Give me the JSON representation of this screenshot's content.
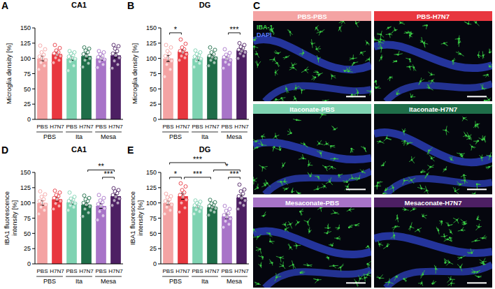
{
  "chart_data": [
    {
      "type": "bar",
      "panel": "A",
      "title": "CA1",
      "y_label": "Microglia density [%]",
      "categories": [
        "PBS",
        "H7N7",
        "PBS",
        "H7N7",
        "PBS",
        "H7N7"
      ],
      "groups": [
        "PBS",
        "Ita",
        "Mesa"
      ],
      "values": [
        100,
        107,
        100,
        104,
        100,
        105
      ],
      "errors": [
        4,
        3,
        3,
        4,
        3,
        4
      ],
      "points": [
        [
          82,
          88,
          93,
          97,
          100,
          103,
          106,
          110,
          115,
          121
        ],
        [
          93,
          97,
          101,
          104,
          106,
          108,
          110,
          113,
          117,
          122
        ],
        [
          80,
          88,
          95,
          99,
          101,
          103,
          105,
          108,
          110,
          112
        ],
        [
          86,
          92,
          97,
          100,
          104,
          107,
          110,
          113,
          116,
          118
        ],
        [
          85,
          90,
          95,
          98,
          100,
          102,
          104,
          107,
          110,
          112
        ],
        [
          84,
          90,
          96,
          101,
          105,
          108,
          112,
          116,
          120,
          122
        ]
      ],
      "colors": [
        "#f4a3a3",
        "#e8373f",
        "#7fd3b2",
        "#1f6e49",
        "#a874c8",
        "#4d1f63"
      ],
      "ylim": [
        0,
        150
      ],
      "yticks": [
        0,
        25,
        50,
        75,
        100,
        125,
        150
      ],
      "brackets": []
    },
    {
      "type": "bar",
      "panel": "B",
      "title": "DG",
      "y_label": "Microglia density [%]",
      "categories": [
        "PBS",
        "H7N7",
        "PBS",
        "H7N7",
        "PBS",
        "H7N7"
      ],
      "groups": [
        "PBS",
        "Ita",
        "Mesa"
      ],
      "values": [
        100,
        111,
        100,
        103,
        100,
        113
      ],
      "errors": [
        5,
        3,
        3,
        3,
        3,
        3
      ],
      "points": [
        [
          70,
          82,
          90,
          96,
          100,
          104,
          108,
          112,
          118,
          122
        ],
        [
          97,
          101,
          104,
          107,
          110,
          112,
          115,
          118,
          124,
          131
        ],
        [
          86,
          92,
          96,
          99,
          101,
          103,
          105,
          107,
          110,
          113
        ],
        [
          88,
          93,
          97,
          100,
          102,
          104,
          107,
          110,
          114,
          118
        ],
        [
          84,
          90,
          94,
          97,
          99,
          102,
          104,
          106,
          109,
          115
        ],
        [
          100,
          104,
          108,
          110,
          112,
          114,
          117,
          119,
          122,
          125
        ]
      ],
      "colors": [
        "#f4a3a3",
        "#e8373f",
        "#7fd3b2",
        "#1f6e49",
        "#a874c8",
        "#4d1f63"
      ],
      "ylim": [
        0,
        150
      ],
      "yticks": [
        0,
        25,
        50,
        75,
        100,
        125,
        150
      ],
      "brackets": [
        {
          "groups": [
            0,
            1
          ],
          "label": "*"
        },
        {
          "groups": [
            4,
            5
          ],
          "label": "***"
        }
      ]
    },
    {
      "type": "bar",
      "panel": "D",
      "title": "CA1",
      "y_label": "IBA1 fluorescence intensity [%]",
      "categories": [
        "PBS",
        "H7N7",
        "PBS",
        "H7N7",
        "PBS",
        "H7N7"
      ],
      "groups": [
        "PBS",
        "Ita",
        "Mesa"
      ],
      "values": [
        100,
        106,
        101,
        97,
        95,
        111
      ],
      "errors": [
        4,
        3,
        3,
        3,
        4,
        3
      ],
      "points": [
        [
          82,
          88,
          93,
          97,
          100,
          103,
          106,
          110,
          114,
          119
        ],
        [
          90,
          95,
          99,
          103,
          106,
          108,
          111,
          113,
          117,
          120
        ],
        [
          88,
          93,
          96,
          99,
          101,
          103,
          105,
          107,
          110,
          117
        ],
        [
          78,
          84,
          90,
          94,
          97,
          100,
          103,
          106,
          108,
          112
        ],
        [
          72,
          79,
          86,
          91,
          95,
          98,
          101,
          104,
          108,
          113
        ],
        [
          96,
          100,
          104,
          107,
          110,
          113,
          116,
          119,
          121,
          124
        ]
      ],
      "colors": [
        "#f4a3a3",
        "#e8373f",
        "#7fd3b2",
        "#1f6e49",
        "#a874c8",
        "#4d1f63"
      ],
      "ylim": [
        0,
        150
      ],
      "yticks": [
        0,
        25,
        50,
        75,
        100,
        125,
        150
      ],
      "brackets": [
        {
          "groups": [
            4,
            5
          ],
          "label": "***"
        },
        {
          "groups": [
            3,
            5
          ],
          "label": "**"
        }
      ]
    },
    {
      "type": "bar",
      "panel": "E",
      "title": "DG",
      "y_label": "IBA1 fluorescence intensity [%]",
      "categories": [
        "PBS",
        "H7N7",
        "PBS",
        "H7N7",
        "PBS",
        "H7N7"
      ],
      "groups": [
        "PBS",
        "Ita",
        "Mesa"
      ],
      "values": [
        100,
        111,
        94,
        93,
        78,
        109
      ],
      "errors": [
        3,
        5,
        2,
        2,
        4,
        4
      ],
      "points": [
        [
          82,
          88,
          93,
          97,
          100,
          103,
          106,
          109,
          111,
          115
        ],
        [
          85,
          92,
          100,
          105,
          110,
          113,
          117,
          121,
          127,
          132
        ],
        [
          82,
          86,
          89,
          92,
          94,
          96,
          98,
          100,
          102,
          104
        ],
        [
          80,
          85,
          88,
          91,
          93,
          95,
          97,
          99,
          101,
          105
        ],
        [
          60,
          65,
          70,
          74,
          77,
          80,
          83,
          87,
          90,
          95
        ],
        [
          90,
          96,
          100,
          104,
          108,
          111,
          115,
          119,
          122,
          130
        ]
      ],
      "colors": [
        "#f4a3a3",
        "#e8373f",
        "#7fd3b2",
        "#1f6e49",
        "#a874c8",
        "#4d1f63"
      ],
      "ylim": [
        0,
        150
      ],
      "yticks": [
        0,
        25,
        50,
        75,
        100,
        125,
        150
      ],
      "brackets": [
        {
          "groups": [
            0,
            1
          ],
          "label": "*"
        },
        {
          "groups": [
            1,
            3
          ],
          "label": "***"
        },
        {
          "groups": [
            0,
            4
          ],
          "label": "***"
        },
        {
          "groups": [
            3,
            5
          ],
          "label": "*"
        },
        {
          "groups": [
            4,
            5
          ],
          "label": "***"
        }
      ]
    }
  ],
  "image_panel": {
    "panel": "C",
    "images": [
      {
        "title": "PBS-PBS",
        "color": "#f4a3a3"
      },
      {
        "title": "PBS-H7N7",
        "color": "#e8373f"
      },
      {
        "title": "Itaconate-PBS",
        "color": "#7fd3b2"
      },
      {
        "title": "Itaconate-H7N7",
        "color": "#1f6e49"
      },
      {
        "title": "Mesaconate-PBS",
        "color": "#a874c8"
      },
      {
        "title": "Mesaconate-H7N7",
        "color": "#4d1f63"
      }
    ],
    "stains": [
      {
        "name": "IBA-1",
        "color": "#3fd44a"
      },
      {
        "name": "DAPI",
        "color": "#5a7dff"
      }
    ]
  }
}
